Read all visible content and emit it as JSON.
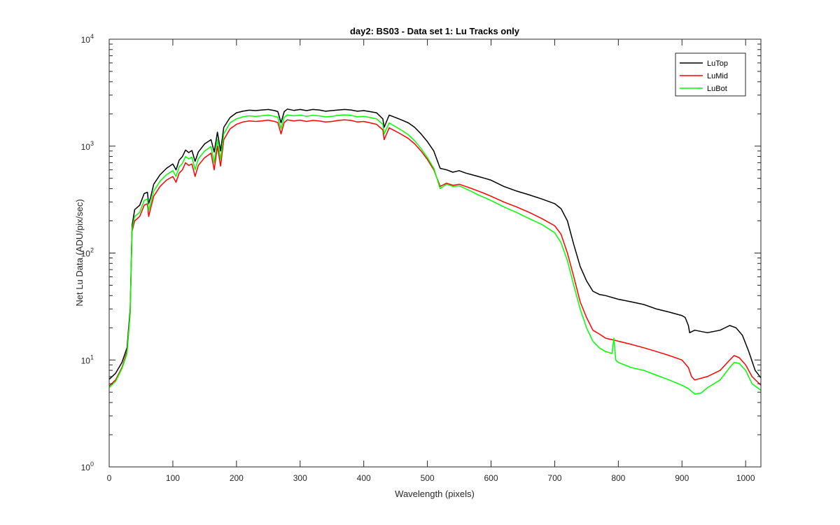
{
  "chart_data": {
    "type": "line",
    "title": "day2: BS03 - Data set 1: Lu Tracks only",
    "xlabel": "Wavelength (pixels)",
    "ylabel": "Net Lu Data (ADU/pix/sec)",
    "xlim": [
      0,
      1024
    ],
    "ylim": [
      1,
      10000
    ],
    "yscale": "log",
    "grid": false,
    "legend_position": "top-right",
    "x_ticks": [
      "0",
      "100",
      "200",
      "300",
      "400",
      "500",
      "600",
      "700",
      "800",
      "900",
      "1000"
    ],
    "y_ticks": [
      {
        "base": "10",
        "exp": "0"
      },
      {
        "base": "10",
        "exp": "1"
      },
      {
        "base": "10",
        "exp": "2"
      },
      {
        "base": "10",
        "exp": "3"
      },
      {
        "base": "10",
        "exp": "4"
      }
    ],
    "series": [
      {
        "name": "LuTop",
        "color": "#000000",
        "points": [
          [
            0,
            6.6
          ],
          [
            10,
            7.5
          ],
          [
            20,
            9.5
          ],
          [
            28,
            13
          ],
          [
            33,
            30
          ],
          [
            36,
            180
          ],
          [
            40,
            255
          ],
          [
            48,
            280
          ],
          [
            55,
            360
          ],
          [
            60,
            370
          ],
          [
            62,
            290
          ],
          [
            65,
            330
          ],
          [
            70,
            440
          ],
          [
            80,
            540
          ],
          [
            90,
            620
          ],
          [
            100,
            680
          ],
          [
            105,
            600
          ],
          [
            110,
            740
          ],
          [
            115,
            800
          ],
          [
            120,
            920
          ],
          [
            125,
            870
          ],
          [
            130,
            910
          ],
          [
            135,
            720
          ],
          [
            140,
            880
          ],
          [
            150,
            1050
          ],
          [
            160,
            1150
          ],
          [
            165,
            880
          ],
          [
            170,
            1350
          ],
          [
            175,
            900
          ],
          [
            180,
            1500
          ],
          [
            190,
            1850
          ],
          [
            200,
            2050
          ],
          [
            210,
            2120
          ],
          [
            220,
            2170
          ],
          [
            230,
            2150
          ],
          [
            240,
            2180
          ],
          [
            250,
            2200
          ],
          [
            260,
            2150
          ],
          [
            265,
            2100
          ],
          [
            270,
            1650
          ],
          [
            275,
            2100
          ],
          [
            280,
            2220
          ],
          [
            290,
            2160
          ],
          [
            300,
            2200
          ],
          [
            310,
            2150
          ],
          [
            320,
            2200
          ],
          [
            330,
            2180
          ],
          [
            340,
            2120
          ],
          [
            350,
            2150
          ],
          [
            360,
            2180
          ],
          [
            370,
            2200
          ],
          [
            380,
            2180
          ],
          [
            390,
            2120
          ],
          [
            400,
            2150
          ],
          [
            410,
            2100
          ],
          [
            420,
            2050
          ],
          [
            430,
            1800
          ],
          [
            432,
            1500
          ],
          [
            440,
            1950
          ],
          [
            450,
            1850
          ],
          [
            460,
            1750
          ],
          [
            470,
            1650
          ],
          [
            480,
            1500
          ],
          [
            490,
            1300
          ],
          [
            500,
            1100
          ],
          [
            510,
            900
          ],
          [
            520,
            620
          ],
          [
            530,
            600
          ],
          [
            540,
            570
          ],
          [
            550,
            590
          ],
          [
            560,
            560
          ],
          [
            570,
            540
          ],
          [
            580,
            520
          ],
          [
            590,
            500
          ],
          [
            600,
            480
          ],
          [
            620,
            420
          ],
          [
            640,
            380
          ],
          [
            660,
            350
          ],
          [
            680,
            320
          ],
          [
            700,
            290
          ],
          [
            710,
            260
          ],
          [
            720,
            200
          ],
          [
            730,
            120
          ],
          [
            740,
            75
          ],
          [
            750,
            55
          ],
          [
            760,
            44
          ],
          [
            770,
            41
          ],
          [
            780,
            40
          ],
          [
            800,
            37
          ],
          [
            820,
            35
          ],
          [
            840,
            33
          ],
          [
            860,
            30
          ],
          [
            880,
            28
          ],
          [
            900,
            26
          ],
          [
            905,
            25
          ],
          [
            910,
            21
          ],
          [
            912,
            18
          ],
          [
            920,
            19
          ],
          [
            940,
            18
          ],
          [
            960,
            19
          ],
          [
            975,
            21
          ],
          [
            985,
            20
          ],
          [
            995,
            17
          ],
          [
            1005,
            12
          ],
          [
            1015,
            8
          ],
          [
            1024,
            6.8
          ]
        ]
      },
      {
        "name": "LuMid",
        "color": "#ff0000",
        "points": [
          [
            0,
            5.7
          ],
          [
            10,
            6.5
          ],
          [
            20,
            8.5
          ],
          [
            28,
            12
          ],
          [
            33,
            28
          ],
          [
            36,
            160
          ],
          [
            40,
            200
          ],
          [
            48,
            220
          ],
          [
            55,
            280
          ],
          [
            60,
            290
          ],
          [
            62,
            220
          ],
          [
            65,
            260
          ],
          [
            70,
            340
          ],
          [
            80,
            420
          ],
          [
            90,
            480
          ],
          [
            100,
            520
          ],
          [
            105,
            460
          ],
          [
            110,
            560
          ],
          [
            115,
            600
          ],
          [
            120,
            700
          ],
          [
            125,
            660
          ],
          [
            130,
            680
          ],
          [
            135,
            520
          ],
          [
            140,
            660
          ],
          [
            150,
            780
          ],
          [
            160,
            860
          ],
          [
            165,
            600
          ],
          [
            170,
            1000
          ],
          [
            175,
            650
          ],
          [
            180,
            1150
          ],
          [
            190,
            1450
          ],
          [
            200,
            1600
          ],
          [
            210,
            1680
          ],
          [
            220,
            1720
          ],
          [
            230,
            1700
          ],
          [
            240,
            1720
          ],
          [
            250,
            1750
          ],
          [
            260,
            1700
          ],
          [
            265,
            1660
          ],
          [
            270,
            1300
          ],
          [
            275,
            1660
          ],
          [
            280,
            1760
          ],
          [
            290,
            1720
          ],
          [
            300,
            1750
          ],
          [
            310,
            1700
          ],
          [
            320,
            1740
          ],
          [
            330,
            1720
          ],
          [
            340,
            1680
          ],
          [
            350,
            1700
          ],
          [
            360,
            1740
          ],
          [
            370,
            1760
          ],
          [
            380,
            1740
          ],
          [
            390,
            1680
          ],
          [
            400,
            1700
          ],
          [
            410,
            1650
          ],
          [
            420,
            1600
          ],
          [
            430,
            1420
          ],
          [
            432,
            1150
          ],
          [
            440,
            1480
          ],
          [
            450,
            1380
          ],
          [
            460,
            1280
          ],
          [
            470,
            1180
          ],
          [
            480,
            1050
          ],
          [
            490,
            900
          ],
          [
            500,
            750
          ],
          [
            510,
            600
          ],
          [
            520,
            420
          ],
          [
            530,
            450
          ],
          [
            540,
            430
          ],
          [
            550,
            440
          ],
          [
            560,
            420
          ],
          [
            570,
            400
          ],
          [
            580,
            380
          ],
          [
            590,
            360
          ],
          [
            600,
            340
          ],
          [
            620,
            300
          ],
          [
            640,
            270
          ],
          [
            660,
            240
          ],
          [
            680,
            210
          ],
          [
            700,
            180
          ],
          [
            710,
            150
          ],
          [
            720,
            100
          ],
          [
            730,
            60
          ],
          [
            740,
            35
          ],
          [
            750,
            25
          ],
          [
            760,
            19
          ],
          [
            770,
            17.5
          ],
          [
            780,
            16
          ],
          [
            800,
            15
          ],
          [
            820,
            14
          ],
          [
            840,
            13
          ],
          [
            860,
            12
          ],
          [
            880,
            11
          ],
          [
            900,
            10
          ],
          [
            910,
            8.5
          ],
          [
            915,
            7
          ],
          [
            920,
            6.5
          ],
          [
            940,
            7
          ],
          [
            960,
            8
          ],
          [
            975,
            10
          ],
          [
            982,
            11
          ],
          [
            990,
            10.5
          ],
          [
            1000,
            9
          ],
          [
            1010,
            7
          ],
          [
            1024,
            5.8
          ]
        ]
      },
      {
        "name": "LuBot",
        "color": "#00ff00",
        "points": [
          [
            0,
            5.5
          ],
          [
            10,
            6.3
          ],
          [
            20,
            8.3
          ],
          [
            28,
            11.5
          ],
          [
            33,
            27
          ],
          [
            36,
            170
          ],
          [
            40,
            220
          ],
          [
            48,
            240
          ],
          [
            55,
            310
          ],
          [
            60,
            320
          ],
          [
            62,
            250
          ],
          [
            65,
            290
          ],
          [
            70,
            380
          ],
          [
            80,
            470
          ],
          [
            90,
            540
          ],
          [
            100,
            590
          ],
          [
            105,
            520
          ],
          [
            110,
            640
          ],
          [
            115,
            690
          ],
          [
            120,
            800
          ],
          [
            125,
            760
          ],
          [
            130,
            790
          ],
          [
            135,
            600
          ],
          [
            140,
            760
          ],
          [
            150,
            900
          ],
          [
            160,
            990
          ],
          [
            165,
            700
          ],
          [
            170,
            1150
          ],
          [
            175,
            750
          ],
          [
            180,
            1300
          ],
          [
            190,
            1650
          ],
          [
            200,
            1800
          ],
          [
            210,
            1880
          ],
          [
            220,
            1920
          ],
          [
            230,
            1900
          ],
          [
            240,
            1920
          ],
          [
            250,
            1950
          ],
          [
            260,
            1900
          ],
          [
            265,
            1860
          ],
          [
            270,
            1450
          ],
          [
            275,
            1860
          ],
          [
            280,
            1960
          ],
          [
            290,
            1920
          ],
          [
            300,
            1950
          ],
          [
            310,
            1900
          ],
          [
            320,
            1940
          ],
          [
            330,
            1920
          ],
          [
            340,
            1880
          ],
          [
            350,
            1900
          ],
          [
            360,
            1940
          ],
          [
            370,
            1960
          ],
          [
            380,
            1940
          ],
          [
            390,
            1880
          ],
          [
            400,
            1900
          ],
          [
            410,
            1850
          ],
          [
            420,
            1800
          ],
          [
            430,
            1600
          ],
          [
            432,
            1300
          ],
          [
            440,
            1650
          ],
          [
            450,
            1520
          ],
          [
            460,
            1400
          ],
          [
            470,
            1280
          ],
          [
            480,
            1120
          ],
          [
            490,
            950
          ],
          [
            500,
            780
          ],
          [
            510,
            620
          ],
          [
            520,
            400
          ],
          [
            530,
            440
          ],
          [
            540,
            420
          ],
          [
            550,
            425
          ],
          [
            560,
            400
          ],
          [
            570,
            375
          ],
          [
            580,
            350
          ],
          [
            590,
            330
          ],
          [
            600,
            310
          ],
          [
            620,
            270
          ],
          [
            640,
            240
          ],
          [
            660,
            210
          ],
          [
            680,
            185
          ],
          [
            700,
            155
          ],
          [
            710,
            125
          ],
          [
            720,
            85
          ],
          [
            730,
            50
          ],
          [
            740,
            30
          ],
          [
            750,
            20
          ],
          [
            760,
            15
          ],
          [
            770,
            13
          ],
          [
            780,
            12
          ],
          [
            790,
            11.5
          ],
          [
            793,
            16
          ],
          [
            796,
            10
          ],
          [
            800,
            9.5
          ],
          [
            820,
            8.5
          ],
          [
            840,
            8
          ],
          [
            860,
            7.2
          ],
          [
            880,
            6.5
          ],
          [
            900,
            5.8
          ],
          [
            910,
            5.4
          ],
          [
            920,
            4.8
          ],
          [
            930,
            4.9
          ],
          [
            940,
            5.5
          ],
          [
            960,
            6.5
          ],
          [
            975,
            8.5
          ],
          [
            982,
            9.5
          ],
          [
            990,
            9.3
          ],
          [
            1000,
            8
          ],
          [
            1010,
            6
          ],
          [
            1024,
            5.2
          ]
        ]
      }
    ]
  }
}
